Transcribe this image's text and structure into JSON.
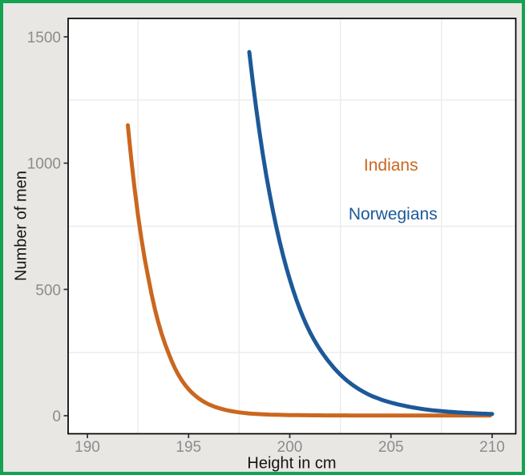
{
  "frame": {
    "border_color": "#16a351",
    "outer_background": "#e9e7e4",
    "panel_background": "#ffffff",
    "panel_border_color": "#000000",
    "gridline_color": "#ebebeb",
    "tick_mark_color": "#383838",
    "tick_label_color": "#8c8c8c"
  },
  "chart_data": {
    "type": "line",
    "title": "",
    "xlabel": "Height in cm",
    "ylabel": "Number of men",
    "x_ticks": [
      190,
      195,
      200,
      205,
      210
    ],
    "y_ticks": [
      0,
      500,
      1000,
      1500
    ],
    "x_minor_gridlines": [
      192.5,
      197.5,
      202.5,
      207.5
    ],
    "y_minor_gridlines": [
      250,
      750,
      1250
    ],
    "xlim": [
      189.05,
      211.15
    ],
    "ylim": [
      -75,
      1575
    ],
    "grid": "minor gridlines only, light gray on white panel",
    "legend_position": "text annotations inside plot, upper right",
    "series": [
      {
        "name": "Indians",
        "color": "#ca671f",
        "x": [
          192,
          193,
          194,
          195,
          196,
          197,
          198,
          199,
          200,
          201,
          202,
          203,
          204,
          205,
          206,
          207,
          208,
          209,
          209.9
        ],
        "values": [
          1150,
          550,
          250,
          105,
          45,
          20,
          9,
          4.5,
          2.5,
          1.7,
          1.3,
          1.1,
          1,
          1,
          1,
          1,
          1,
          1,
          1
        ]
      },
      {
        "name": "Norwegians",
        "color": "#1c5998",
        "x": [
          198,
          199,
          200,
          201,
          202,
          203,
          204,
          205,
          206,
          207,
          208,
          209,
          210
        ],
        "values": [
          1440,
          880,
          540,
          330,
          207,
          128,
          80,
          52,
          34,
          22,
          15,
          10,
          7
        ]
      }
    ],
    "annotations": [
      {
        "text": "Indians",
        "color": "#ca671f",
        "x": 205.0,
        "y": 990
      },
      {
        "text": "Norwegians",
        "color": "#1c5998",
        "x": 205.1,
        "y": 795
      }
    ]
  }
}
